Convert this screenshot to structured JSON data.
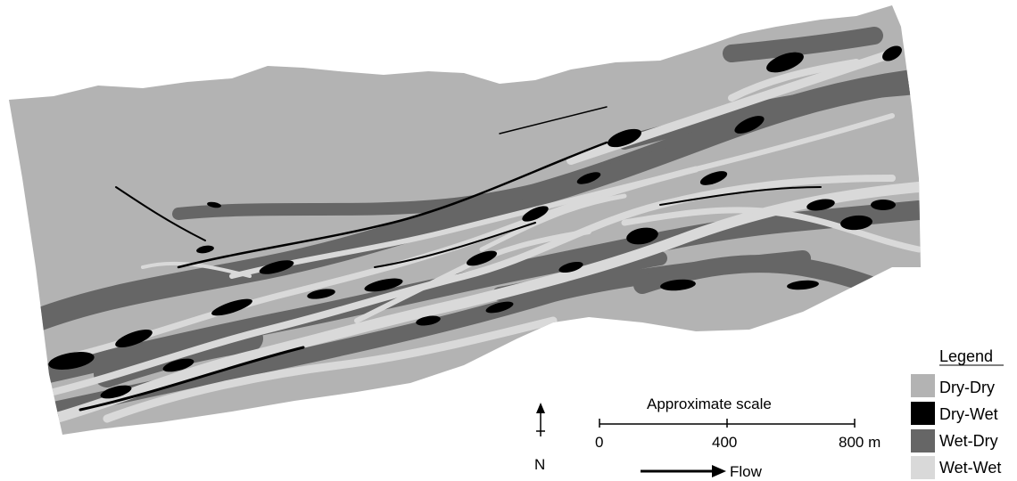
{
  "legend": {
    "title": "Legend",
    "items": [
      {
        "label": "Dry-Dry",
        "color": "#b3b3b3"
      },
      {
        "label": "Dry-Wet",
        "color": "#000000"
      },
      {
        "label": "Wet-Dry",
        "color": "#666666"
      },
      {
        "label": "Wet-Wet",
        "color": "#d9d9d9"
      }
    ]
  },
  "scale_bar": {
    "title": "Approximate scale",
    "ticks": [
      "0",
      "400",
      "800 m"
    ]
  },
  "north_arrow": {
    "label": "N"
  },
  "flow_arrow": {
    "label": "Flow"
  },
  "colors": {
    "dry_dry": "#b3b3b3",
    "dry_wet": "#000000",
    "wet_dry": "#666666",
    "wet_wet": "#d9d9d9"
  }
}
